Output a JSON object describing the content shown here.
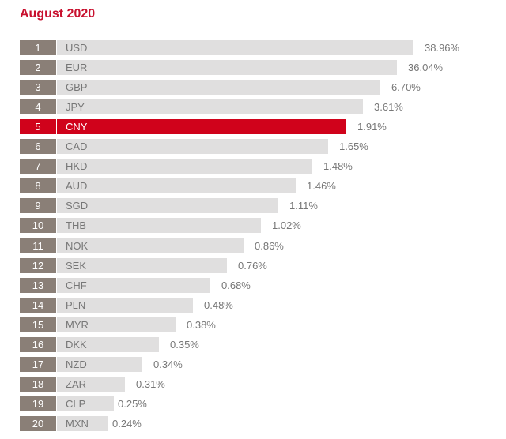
{
  "chart_data": {
    "type": "bar",
    "title": "August 2020",
    "highlight": "CNY",
    "highlight_color": "#d0021b",
    "bar_color": "#e0dfdf",
    "rank_color": "#8a7f77",
    "ranks": [
      "1",
      "2",
      "3",
      "4",
      "5",
      "6",
      "7",
      "8",
      "9",
      "10",
      "11",
      "12",
      "13",
      "14",
      "15",
      "16",
      "17",
      "18",
      "19",
      "20"
    ],
    "categories": [
      "USD",
      "EUR",
      "GBP",
      "JPY",
      "CNY",
      "CAD",
      "HKD",
      "AUD",
      "SGD",
      "THB",
      "NOK",
      "SEK",
      "CHF",
      "PLN",
      "MYR",
      "DKK",
      "NZD",
      "ZAR",
      "CLP",
      "MXN"
    ],
    "values": [
      38.96,
      36.04,
      6.7,
      3.61,
      1.91,
      1.65,
      1.48,
      1.46,
      1.11,
      1.02,
      0.86,
      0.76,
      0.68,
      0.48,
      0.38,
      0.35,
      0.34,
      0.31,
      0.25,
      0.24
    ],
    "labels": [
      "38.96%",
      "36.04%",
      "6.70%",
      "3.61%",
      "1.91%",
      "1.65%",
      "1.48%",
      "1.46%",
      "1.11%",
      "1.02%",
      "0.86%",
      "0.76%",
      "0.68%",
      "0.48%",
      "0.38%",
      "0.35%",
      "0.34%",
      "0.31%",
      "0.25%",
      "0.24%"
    ],
    "unit": "%"
  }
}
